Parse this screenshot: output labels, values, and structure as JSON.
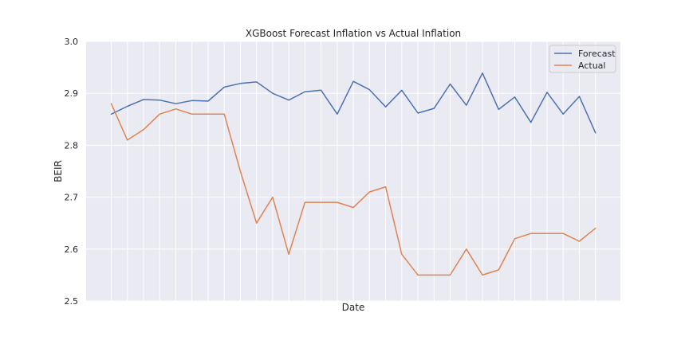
{
  "chart_data": {
    "type": "line",
    "title": "XGBoost Forecast Inflation vs Actual Inflation",
    "xlabel": "Date",
    "ylabel": "BEIR",
    "ylim": [
      2.5,
      3.0
    ],
    "yticks": [
      "2.5",
      "2.6",
      "2.7",
      "2.8",
      "2.9",
      "3.0"
    ],
    "grid": true,
    "legend_position": "top-right",
    "x": [
      1,
      2,
      3,
      4,
      5,
      6,
      7,
      8,
      9,
      10,
      11,
      12,
      13,
      14,
      15,
      16,
      17,
      18,
      19,
      20,
      21,
      22,
      23,
      24,
      25,
      26,
      27,
      28,
      29,
      30,
      31
    ],
    "series": [
      {
        "name": "Forecast",
        "color": "#4c72b0",
        "values": [
          2.86,
          2.875,
          2.888,
          2.887,
          2.88,
          2.886,
          2.885,
          2.912,
          2.919,
          2.922,
          2.9,
          2.887,
          2.903,
          2.906,
          2.86,
          2.923,
          2.907,
          2.874,
          2.906,
          2.862,
          2.871,
          2.918,
          2.877,
          2.939,
          2.869,
          2.893,
          2.844,
          2.902,
          2.86,
          2.894,
          2.824
        ]
      },
      {
        "name": "Actual",
        "color": "#dd8452",
        "values": [
          2.88,
          2.81,
          2.83,
          2.86,
          2.87,
          2.86,
          2.86,
          2.86,
          2.75,
          2.65,
          2.7,
          2.59,
          2.69,
          2.69,
          2.69,
          2.68,
          2.71,
          2.72,
          2.59,
          2.55,
          2.55,
          2.55,
          2.6,
          2.55,
          2.56,
          2.62,
          2.63,
          2.63,
          2.63,
          2.615,
          2.64
        ]
      }
    ]
  }
}
